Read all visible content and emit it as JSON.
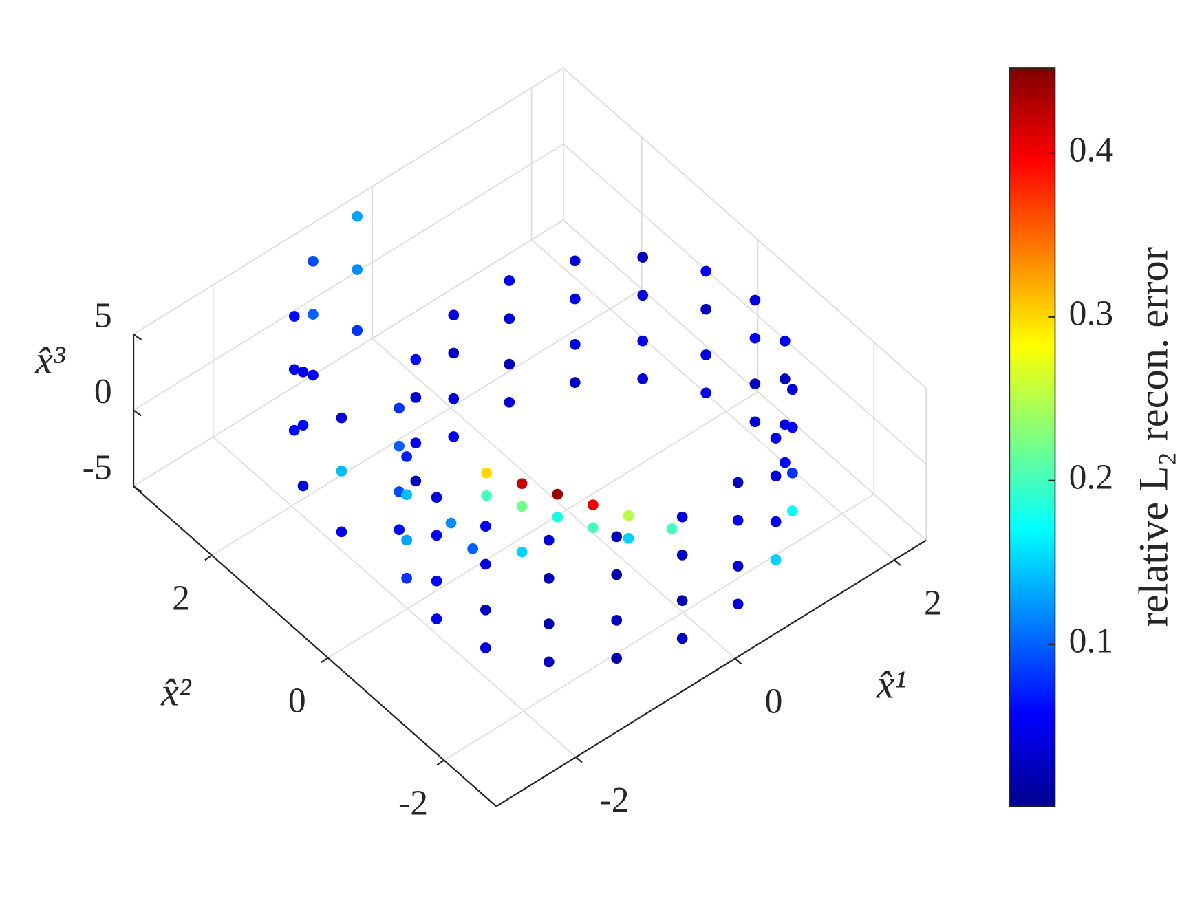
{
  "chart_data": {
    "type": "scatter3d",
    "x_label": "x̂¹",
    "y_label": "x̂²",
    "z_label": "x̂³",
    "colorbar_label": "relative L₂ recon. error",
    "colormap": "jet",
    "grid": true,
    "xlim": [
      -3,
      2.4
    ],
    "ylim": [
      -2.9,
      3.35
    ],
    "zlim": [
      -5,
      5
    ],
    "xticks": [
      -2,
      0,
      2
    ],
    "yticks": [
      -2,
      0,
      2
    ],
    "zticks": [
      -5,
      0,
      5
    ],
    "clim": [
      0.001,
      0.452
    ],
    "cticks": [
      0.1,
      0.2,
      0.3,
      0.4
    ],
    "x": [
      2.0,
      1.88,
      1.53,
      1.0,
      0.35,
      -0.35,
      -1.0,
      -1.53,
      -1.88,
      -2.0,
      -1.88,
      -1.53,
      -1.0,
      -0.35,
      0.35,
      1.0,
      1.53,
      1.88,
      2.0,
      1.88,
      1.53,
      1.0,
      0.35,
      -0.35,
      -1.0,
      -1.53,
      -1.88,
      -2.0,
      -1.88,
      -1.53,
      -1.0,
      -0.35,
      0.35,
      1.0,
      1.53,
      1.88,
      2.0,
      1.88,
      1.53,
      1.0,
      0.35,
      -0.35,
      -1.0,
      -1.53,
      -1.88,
      -2.0,
      -1.88,
      -1.53,
      -1.0,
      -0.35,
      0.35,
      1.0,
      1.53,
      1.88,
      2.0,
      1.88,
      1.53,
      1.0,
      0.35,
      -0.35,
      -1.0,
      -1.53,
      -1.88,
      -2.0,
      -1.88,
      -1.53,
      -1.0,
      -0.35,
      0.35,
      1.0,
      1.53,
      1.88,
      -2.1,
      -2.0,
      -1.6,
      -1.0,
      -0.3,
      -2.1,
      -2.0,
      -1.6,
      -1.0,
      -0.3,
      -2.1,
      -2.0,
      -1.6,
      -1.0,
      -0.3,
      -1.3,
      -1.0,
      -0.7,
      -0.4,
      -0.1,
      -1.3,
      -1.0,
      -0.7,
      -0.4,
      -0.1,
      -1.6,
      -1.4,
      0.3,
      -1.0
    ],
    "y": [
      -0.5,
      0.18,
      0.79,
      1.23,
      1.47,
      1.47,
      1.23,
      0.79,
      0.18,
      -0.5,
      -1.18,
      -1.79,
      -2.23,
      -2.47,
      -2.47,
      -2.23,
      -1.79,
      -1.18,
      -0.5,
      0.18,
      0.79,
      1.23,
      1.47,
      1.47,
      1.23,
      0.79,
      0.18,
      -0.5,
      -1.18,
      -1.79,
      -2.23,
      -2.47,
      -2.47,
      -2.23,
      -1.79,
      -1.18,
      -0.5,
      0.18,
      0.79,
      1.23,
      1.47,
      1.47,
      1.23,
      0.79,
      0.18,
      -0.5,
      -1.18,
      -1.79,
      -2.23,
      -2.47,
      -2.47,
      -2.23,
      -1.79,
      -1.18,
      -0.5,
      0.18,
      0.79,
      1.23,
      1.47,
      1.47,
      1.23,
      0.79,
      0.18,
      -0.5,
      -1.18,
      -1.79,
      -2.23,
      -2.47,
      -2.47,
      -2.23,
      -1.79,
      -1.18,
      1.0,
      1.8,
      2.5,
      3.0,
      3.2,
      1.0,
      1.8,
      2.5,
      3.0,
      3.2,
      1.0,
      1.8,
      2.5,
      3.0,
      3.2,
      -0.4,
      -0.6,
      -0.8,
      -1.0,
      -1.2,
      -0.4,
      -0.6,
      -0.8,
      -1.0,
      -1.2,
      -0.2,
      -0.3,
      -1.4,
      -0.6
    ],
    "z": [
      -4,
      -4,
      -4,
      -4,
      -4,
      -4,
      -4,
      -4,
      -4,
      -4,
      -4,
      -4,
      -4,
      -4,
      -4,
      -4,
      -4,
      -4,
      -1.5,
      -1.5,
      -1.5,
      -1.5,
      -1.5,
      -1.5,
      -1.5,
      -1.5,
      -1.5,
      -1.5,
      -1.5,
      -1.5,
      -1.5,
      -1.5,
      -1.5,
      -1.5,
      -1.5,
      -1.5,
      1.5,
      1.5,
      1.5,
      1.5,
      1.5,
      1.5,
      1.5,
      1.5,
      1.5,
      1.5,
      1.5,
      1.5,
      1.5,
      1.5,
      1.5,
      1.5,
      1.5,
      1.5,
      4,
      4,
      4,
      4,
      4,
      4,
      4,
      4,
      4,
      4,
      4,
      4,
      4,
      4,
      4,
      4,
      4,
      4,
      -3,
      -3,
      -3,
      -3,
      -3,
      1,
      1,
      1,
      1,
      1,
      4.5,
      4.5,
      4.5,
      4.5,
      4.5,
      3.0,
      2.0,
      1.0,
      0.0,
      -1.0,
      1.5,
      0.5,
      -0.5,
      -1.5,
      -2.5,
      0,
      -2,
      -2.5,
      -2.5
    ],
    "c": [
      0.04,
      0.05,
      0.04,
      0.03,
      0.04,
      0.05,
      0.03,
      0.06,
      0.08,
      0.05,
      0.04,
      0.03,
      0.02,
      0.03,
      0.04,
      0.15,
      0.17,
      0.06,
      0.03,
      0.04,
      0.05,
      0.04,
      0.03,
      0.04,
      0.05,
      0.09,
      0.13,
      0.06,
      0.03,
      0.02,
      0.03,
      0.02,
      0.04,
      0.05,
      0.08,
      0.04,
      0.05,
      0.03,
      0.04,
      0.05,
      0.04,
      0.03,
      0.04,
      0.1,
      0.14,
      0.05,
      0.04,
      0.03,
      0.02,
      0.03,
      0.05,
      0.04,
      0.05,
      0.03,
      0.04,
      0.05,
      0.03,
      0.04,
      0.05,
      0.04,
      0.06,
      0.08,
      0.07,
      0.04,
      0.05,
      0.04,
      0.03,
      0.04,
      0.03,
      0.05,
      0.04,
      0.05,
      0.05,
      0.04,
      0.06,
      0.05,
      0.08,
      0.14,
      0.06,
      0.05,
      0.1,
      0.12,
      0.04,
      0.05,
      0.06,
      0.09,
      0.13,
      0.3,
      0.42,
      0.44,
      0.4,
      0.25,
      0.2,
      0.22,
      0.18,
      0.2,
      0.15,
      0.12,
      0.1,
      0.2,
      0.15
    ]
  }
}
